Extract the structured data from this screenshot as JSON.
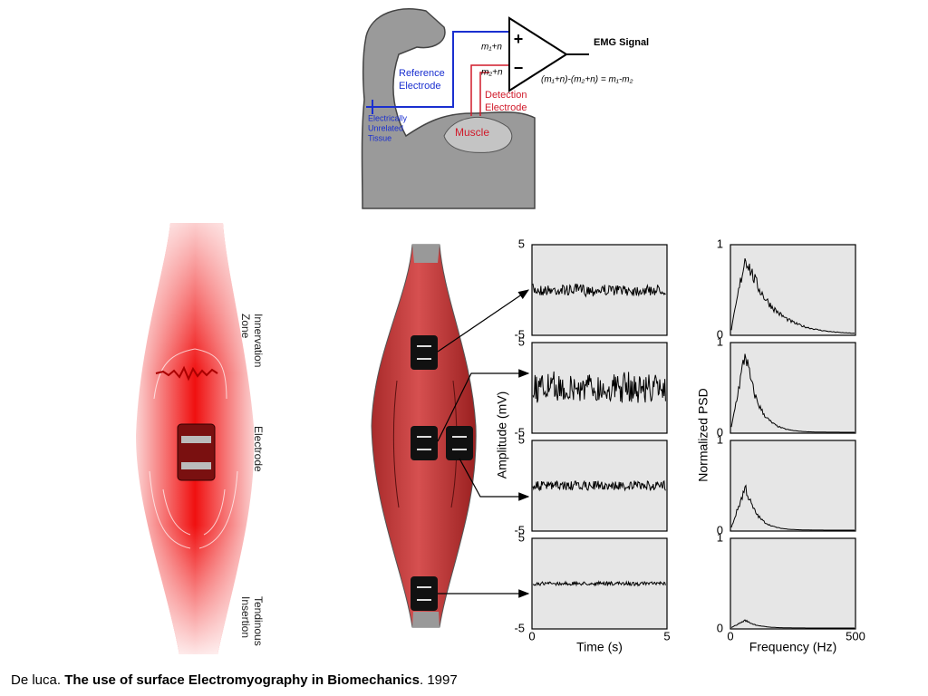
{
  "arm_diagram": {
    "plus": "+",
    "minus": "−",
    "input_1": "m₁+n",
    "input_2": "m₂+n",
    "output": "EMG Signal",
    "formula": "(m₁+n)-(m₂+n) = m₁-m₂",
    "reference_electrode": [
      "Reference",
      "Electrode"
    ],
    "unrelated_tissue": [
      "Electrically",
      "Unrelated",
      "Tissue"
    ],
    "detection_electrode": [
      "Detection",
      "Electrode"
    ],
    "muscle": "Muscle"
  },
  "muscle_diagram": {
    "innervation_zone": [
      "Innervation",
      "Zone"
    ],
    "electrode": "Electrode",
    "tendinous_insertion": [
      "Tendinous",
      "Insertion"
    ]
  },
  "time_plots": {
    "ylabel": "Amplitude (mV)",
    "xlabel": "Time (s)",
    "xlim": [
      0,
      5
    ],
    "xticks": [
      0,
      5
    ],
    "ylim": [
      -5,
      5
    ],
    "panels": [
      {
        "yticks": [
          -5,
          5
        ]
      },
      {
        "yticks": [
          -5,
          5
        ]
      },
      {
        "yticks": [
          -5,
          5
        ]
      },
      {
        "yticks": [
          -5,
          5
        ]
      }
    ]
  },
  "psd_plots": {
    "ylabel": "Normalized PSD",
    "xlabel": "Frequency (Hz)",
    "xlim": [
      0,
      500
    ],
    "xticks": [
      0,
      500
    ],
    "ylim": [
      0,
      1
    ],
    "panels": [
      {
        "yticks": [
          0,
          1
        ]
      },
      {
        "yticks": [
          0,
          1
        ]
      },
      {
        "yticks": [
          0,
          1
        ]
      },
      {
        "yticks": [
          0,
          1
        ]
      }
    ]
  },
  "caption": {
    "author": "De luca.",
    "title": "The use of surface Electromyography in Biomechanics",
    "year": ". 1997"
  }
}
